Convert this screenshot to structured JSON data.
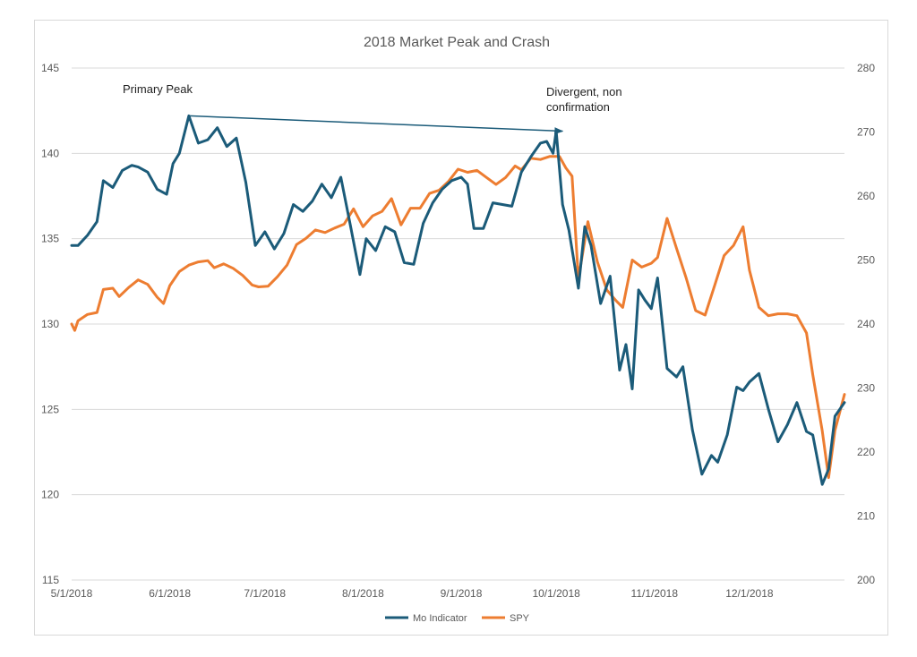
{
  "chart_data": {
    "type": "line",
    "title": "2018 Market Peak and Crash",
    "x_ticks": [
      "5/1/2018",
      "6/1/2018",
      "7/1/2018",
      "8/1/2018",
      "9/1/2018",
      "10/1/2018",
      "11/1/2018",
      "12/1/2018"
    ],
    "x_range": [
      "2018-05-01",
      "2018-12-31"
    ],
    "y_left": {
      "ticks": [
        115,
        120,
        125,
        130,
        135,
        140,
        145
      ],
      "range": [
        115,
        145
      ]
    },
    "y_right": {
      "ticks": [
        200,
        210,
        220,
        230,
        240,
        250,
        260,
        270,
        280
      ],
      "range": [
        200,
        280
      ]
    },
    "grid": true,
    "legend_position": "bottom",
    "colors": {
      "mo": "#1b5b79",
      "spy": "#ed7d31",
      "grid": "#d9d9d9",
      "arrow": "#1b5b79"
    },
    "series": [
      {
        "name": "Mo Indicator",
        "axis": "left",
        "x": [
          "2018-05-01",
          "2018-05-03",
          "2018-05-06",
          "2018-05-09",
          "2018-05-11",
          "2018-05-14",
          "2018-05-17",
          "2018-05-20",
          "2018-05-22",
          "2018-05-25",
          "2018-05-28",
          "2018-05-31",
          "2018-06-02",
          "2018-06-04",
          "2018-06-07",
          "2018-06-10",
          "2018-06-13",
          "2018-06-16",
          "2018-06-19",
          "2018-06-22",
          "2018-06-25",
          "2018-06-28",
          "2018-07-01",
          "2018-07-04",
          "2018-07-07",
          "2018-07-10",
          "2018-07-13",
          "2018-07-16",
          "2018-07-19",
          "2018-07-22",
          "2018-07-25",
          "2018-07-28",
          "2018-07-31",
          "2018-08-02",
          "2018-08-05",
          "2018-08-08",
          "2018-08-11",
          "2018-08-14",
          "2018-08-17",
          "2018-08-20",
          "2018-08-23",
          "2018-08-26",
          "2018-08-29",
          "2018-09-01",
          "2018-09-03",
          "2018-09-05",
          "2018-09-08",
          "2018-09-11",
          "2018-09-14",
          "2018-09-17",
          "2018-09-20",
          "2018-09-23",
          "2018-09-26",
          "2018-09-28",
          "2018-09-30",
          "2018-10-01",
          "2018-10-03",
          "2018-10-05",
          "2018-10-08",
          "2018-10-10",
          "2018-10-12",
          "2018-10-15",
          "2018-10-18",
          "2018-10-21",
          "2018-10-23",
          "2018-10-25",
          "2018-10-27",
          "2018-10-29",
          "2018-10-31",
          "2018-11-02",
          "2018-11-05",
          "2018-11-08",
          "2018-11-10",
          "2018-11-13",
          "2018-11-16",
          "2018-11-19",
          "2018-11-21",
          "2018-11-24",
          "2018-11-27",
          "2018-11-29",
          "2018-12-01",
          "2018-12-04",
          "2018-12-07",
          "2018-12-10",
          "2018-12-13",
          "2018-12-16",
          "2018-12-19",
          "2018-12-21",
          "2018-12-24",
          "2018-12-26",
          "2018-12-28",
          "2018-12-31"
        ],
        "values": [
          134.6,
          134.6,
          135.2,
          136.0,
          138.4,
          138.0,
          139.0,
          139.3,
          139.2,
          138.9,
          137.9,
          137.6,
          139.4,
          140.0,
          142.2,
          140.6,
          140.8,
          141.5,
          140.4,
          140.9,
          138.3,
          134.6,
          135.4,
          134.4,
          135.3,
          137.0,
          136.6,
          137.2,
          138.2,
          137.4,
          138.6,
          135.8,
          132.9,
          135.0,
          134.3,
          135.7,
          135.4,
          133.6,
          133.5,
          135.9,
          137.1,
          137.9,
          138.4,
          138.6,
          138.2,
          135.6,
          135.6,
          137.1,
          137.0,
          136.9,
          138.9,
          139.8,
          140.6,
          140.7,
          140.0,
          141.3,
          137.0,
          135.5,
          132.1,
          135.7,
          134.6,
          131.2,
          132.8,
          127.3,
          128.8,
          126.2,
          132.0,
          131.4,
          130.9,
          132.7,
          127.4,
          126.9,
          127.5,
          123.8,
          121.2,
          122.3,
          121.9,
          123.5,
          126.3,
          126.1,
          126.6,
          127.1,
          125.0,
          123.1,
          124.1,
          125.4,
          123.7,
          123.5,
          120.6,
          121.5,
          124.6,
          125.4
        ]
      },
      {
        "name": "SPY",
        "axis": "right",
        "x": [
          "2018-05-01",
          "2018-05-02",
          "2018-05-03",
          "2018-05-06",
          "2018-05-09",
          "2018-05-11",
          "2018-05-14",
          "2018-05-16",
          "2018-05-19",
          "2018-05-22",
          "2018-05-25",
          "2018-05-28",
          "2018-05-30",
          "2018-06-01",
          "2018-06-04",
          "2018-06-07",
          "2018-06-10",
          "2018-06-13",
          "2018-06-15",
          "2018-06-18",
          "2018-06-21",
          "2018-06-24",
          "2018-06-27",
          "2018-06-29",
          "2018-07-02",
          "2018-07-05",
          "2018-07-08",
          "2018-07-11",
          "2018-07-14",
          "2018-07-17",
          "2018-07-20",
          "2018-07-23",
          "2018-07-26",
          "2018-07-29",
          "2018-08-01",
          "2018-08-04",
          "2018-08-07",
          "2018-08-10",
          "2018-08-13",
          "2018-08-16",
          "2018-08-19",
          "2018-08-22",
          "2018-08-25",
          "2018-08-28",
          "2018-08-31",
          "2018-09-03",
          "2018-09-06",
          "2018-09-09",
          "2018-09-12",
          "2018-09-15",
          "2018-09-18",
          "2018-09-20",
          "2018-09-23",
          "2018-09-26",
          "2018-09-29",
          "2018-10-02",
          "2018-10-04",
          "2018-10-06",
          "2018-10-08",
          "2018-10-11",
          "2018-10-14",
          "2018-10-17",
          "2018-10-20",
          "2018-10-22",
          "2018-10-25",
          "2018-10-28",
          "2018-10-31",
          "2018-11-02",
          "2018-11-05",
          "2018-11-08",
          "2018-11-11",
          "2018-11-14",
          "2018-11-17",
          "2018-11-20",
          "2018-11-23",
          "2018-11-26",
          "2018-11-29",
          "2018-12-01",
          "2018-12-04",
          "2018-12-07",
          "2018-12-10",
          "2018-12-13",
          "2018-12-16",
          "2018-12-19",
          "2018-12-21",
          "2018-12-24",
          "2018-12-26",
          "2018-12-28",
          "2018-12-31"
        ],
        "values": [
          240,
          239,
          240.5,
          241.5,
          241.8,
          245.4,
          245.6,
          244.3,
          245.7,
          246.9,
          246.2,
          244.2,
          243.2,
          246.0,
          248.2,
          249.2,
          249.7,
          249.9,
          248.8,
          249.4,
          248.7,
          247.6,
          246.1,
          245.8,
          245.9,
          247.4,
          249.2,
          252.4,
          253.4,
          254.7,
          254.3,
          255.0,
          255.6,
          258.0,
          255.2,
          256.9,
          257.6,
          259.6,
          255.5,
          258.1,
          258.1,
          260.4,
          260.9,
          262.3,
          264.2,
          263.7,
          264.0,
          262.9,
          261.8,
          262.9,
          264.7,
          264.1,
          265.9,
          265.7,
          266.2,
          266.2,
          264.4,
          263.1,
          247.0,
          256.0,
          249.7,
          245.3,
          243.6,
          242.6,
          250.0,
          248.9,
          249.5,
          250.4,
          256.5,
          251.8,
          247.2,
          242.1,
          241.4,
          246.0,
          250.7,
          252.3,
          255.2,
          248.4,
          242.6,
          241.3,
          241.6,
          241.6,
          241.3,
          238.6,
          232.1,
          223.3,
          216.0,
          223.4,
          229.0
        ]
      }
    ],
    "annotations": [
      {
        "text_lines": [
          "Primary Peak"
        ],
        "anchor_date": "2018-06-05"
      },
      {
        "text_lines": [
          "Divergent, non",
          "confirmation"
        ],
        "anchor_date": "2018-09-27"
      }
    ],
    "arrow": {
      "from": {
        "date": "2018-06-07",
        "value": 142.2
      },
      "to": {
        "date": "2018-10-03",
        "value": 141.3
      }
    }
  }
}
